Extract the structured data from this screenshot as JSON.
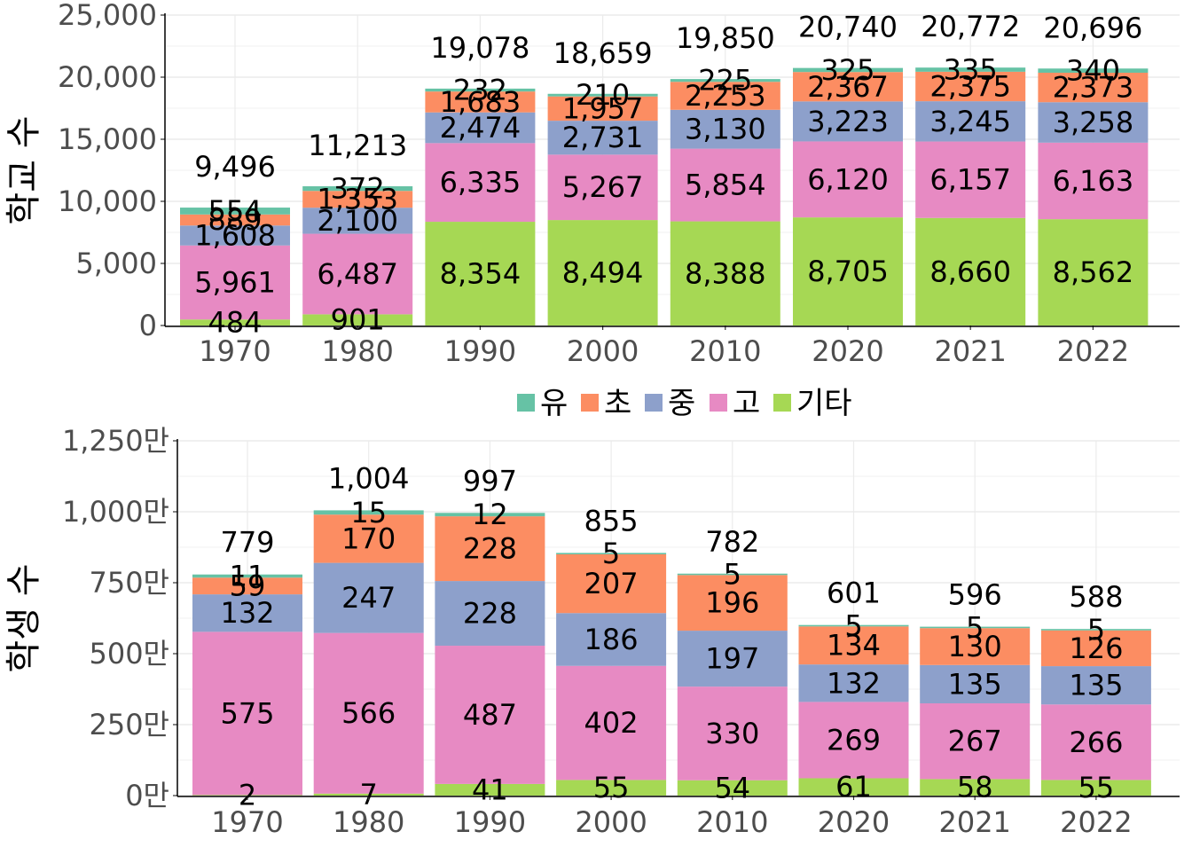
{
  "legend": {
    "items": [
      {
        "label": "유",
        "color": "#66C2A5"
      },
      {
        "label": "초",
        "color": "#FC8D62"
      },
      {
        "label": "중",
        "color": "#8DA0CB"
      },
      {
        "label": "고",
        "color": "#E78AC3"
      },
      {
        "label": "기타",
        "color": "#A6D854"
      }
    ]
  },
  "chart_data": [
    {
      "type": "bar",
      "stacked": true,
      "ylabel": "학교 수",
      "xlabel": "",
      "categories": [
        "1970",
        "1980",
        "1990",
        "2000",
        "2010",
        "2020",
        "2021",
        "2022"
      ],
      "yticks": [
        "0",
        "5,000",
        "10,000",
        "15,000",
        "20,000",
        "25,000"
      ],
      "ylim": [
        0,
        25000
      ],
      "grid": true,
      "series": [
        {
          "name": "기타",
          "color": "#A6D854",
          "values": [
            484,
            901,
            8354,
            8494,
            8388,
            8705,
            8660,
            8562
          ],
          "labels": [
            "484",
            "901",
            "8,354",
            "8,494",
            "8,388",
            "8,705",
            "8,660",
            "8,562"
          ]
        },
        {
          "name": "고",
          "color": "#E78AC3",
          "values": [
            5961,
            6487,
            6335,
            5267,
            5854,
            6120,
            6157,
            6163
          ],
          "labels": [
            "5,961",
            "6,487",
            "6,335",
            "5,267",
            "5,854",
            "6,120",
            "6,157",
            "6,163"
          ]
        },
        {
          "name": "중",
          "color": "#8DA0CB",
          "values": [
            1608,
            2100,
            2474,
            2731,
            3130,
            3223,
            3245,
            3258
          ],
          "labels": [
            "1,608",
            "2,100",
            "2,474",
            "2,731",
            "3,130",
            "3,223",
            "3,245",
            "3,258"
          ]
        },
        {
          "name": "초",
          "color": "#FC8D62",
          "values": [
            889,
            1353,
            1683,
            1957,
            2253,
            2367,
            2375,
            2373
          ],
          "labels": [
            "889",
            "1,353",
            "1,683",
            "1,957",
            "2,253",
            "2,367",
            "2,375",
            "2,373"
          ]
        },
        {
          "name": "유",
          "color": "#66C2A5",
          "values": [
            554,
            372,
            232,
            210,
            225,
            325,
            335,
            340
          ],
          "labels": [
            "554",
            "372",
            "232",
            "210",
            "225",
            "325",
            "335",
            "340"
          ]
        }
      ],
      "totals": [
        "9,496",
        "11,213",
        "19,078",
        "18,659",
        "19,850",
        "20,740",
        "20,772",
        "20,696"
      ]
    },
    {
      "type": "bar",
      "stacked": true,
      "ylabel": "학생 수",
      "xlabel": "",
      "unit": "만",
      "categories": [
        "1970",
        "1980",
        "1990",
        "2000",
        "2010",
        "2020",
        "2021",
        "2022"
      ],
      "yticks": [
        "0만",
        "250만",
        "500만",
        "750만",
        "1,000만",
        "1,250만"
      ],
      "ylim": [
        0,
        1250
      ],
      "grid": true,
      "series": [
        {
          "name": "기타",
          "color": "#A6D854",
          "values": [
            2,
            7,
            41,
            55,
            54,
            61,
            58,
            55
          ],
          "labels": [
            "2",
            "7",
            "41",
            "55",
            "54",
            "61",
            "58",
            "55"
          ]
        },
        {
          "name": "고",
          "color": "#E78AC3",
          "values": [
            575,
            566,
            487,
            402,
            330,
            269,
            267,
            266
          ],
          "labels": [
            "575",
            "566",
            "487",
            "402",
            "330",
            "269",
            "267",
            "266"
          ]
        },
        {
          "name": "중",
          "color": "#8DA0CB",
          "values": [
            132,
            247,
            228,
            186,
            197,
            132,
            135,
            135
          ],
          "labels": [
            "132",
            "247",
            "228",
            "186",
            "197",
            "132",
            "135",
            "135"
          ]
        },
        {
          "name": "초",
          "color": "#FC8D62",
          "values": [
            59,
            170,
            228,
            207,
            196,
            134,
            130,
            126
          ],
          "labels": [
            "59",
            "170",
            "228",
            "207",
            "196",
            "134",
            "130",
            "126"
          ]
        },
        {
          "name": "유",
          "color": "#66C2A5",
          "values": [
            11,
            15,
            12,
            5,
            5,
            5,
            5,
            5
          ],
          "labels": [
            "11",
            "15",
            "12",
            "5",
            "5",
            "5",
            "5",
            "5"
          ]
        }
      ],
      "totals": [
        "779",
        "1,004",
        "997",
        "855",
        "782",
        "601",
        "596",
        "588"
      ]
    }
  ]
}
